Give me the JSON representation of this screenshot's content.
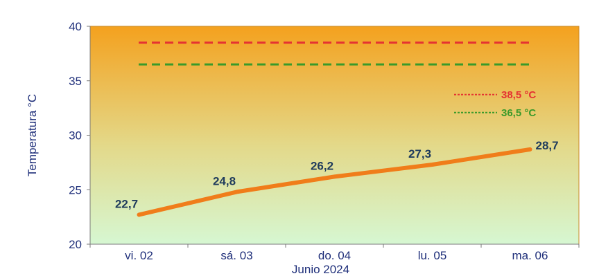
{
  "chart_data": {
    "type": "line",
    "categories": [
      "vi. 02",
      "sá. 03",
      "do. 04",
      "lu. 05",
      "ma. 06"
    ],
    "series": [
      {
        "values": [
          22.7,
          24.8,
          26.2,
          27.3,
          28.7
        ],
        "color": "#f07d1a"
      }
    ],
    "data_labels": [
      "22,7",
      "24,8",
      "26,2",
      "27,3",
      "28,7"
    ],
    "ylabel": "Temperatura °C",
    "xlabel": "Junio 2024",
    "ylim": [
      20,
      40
    ],
    "yticks": [
      20,
      25,
      30,
      35,
      40
    ],
    "ytick_labels": [
      "20",
      "25",
      "30",
      "35",
      "40"
    ],
    "reference_lines": [
      {
        "value": 38.5,
        "label": "38,5 °C",
        "color": "#e53232",
        "style": "dashed"
      },
      {
        "value": 36.5,
        "label": "36,5 °C",
        "color": "#3a9a2a",
        "style": "dashed"
      }
    ],
    "legend_position": "right",
    "grid": false,
    "background": {
      "top": "#f4a11e",
      "bottom": "#d6f7d2"
    }
  }
}
